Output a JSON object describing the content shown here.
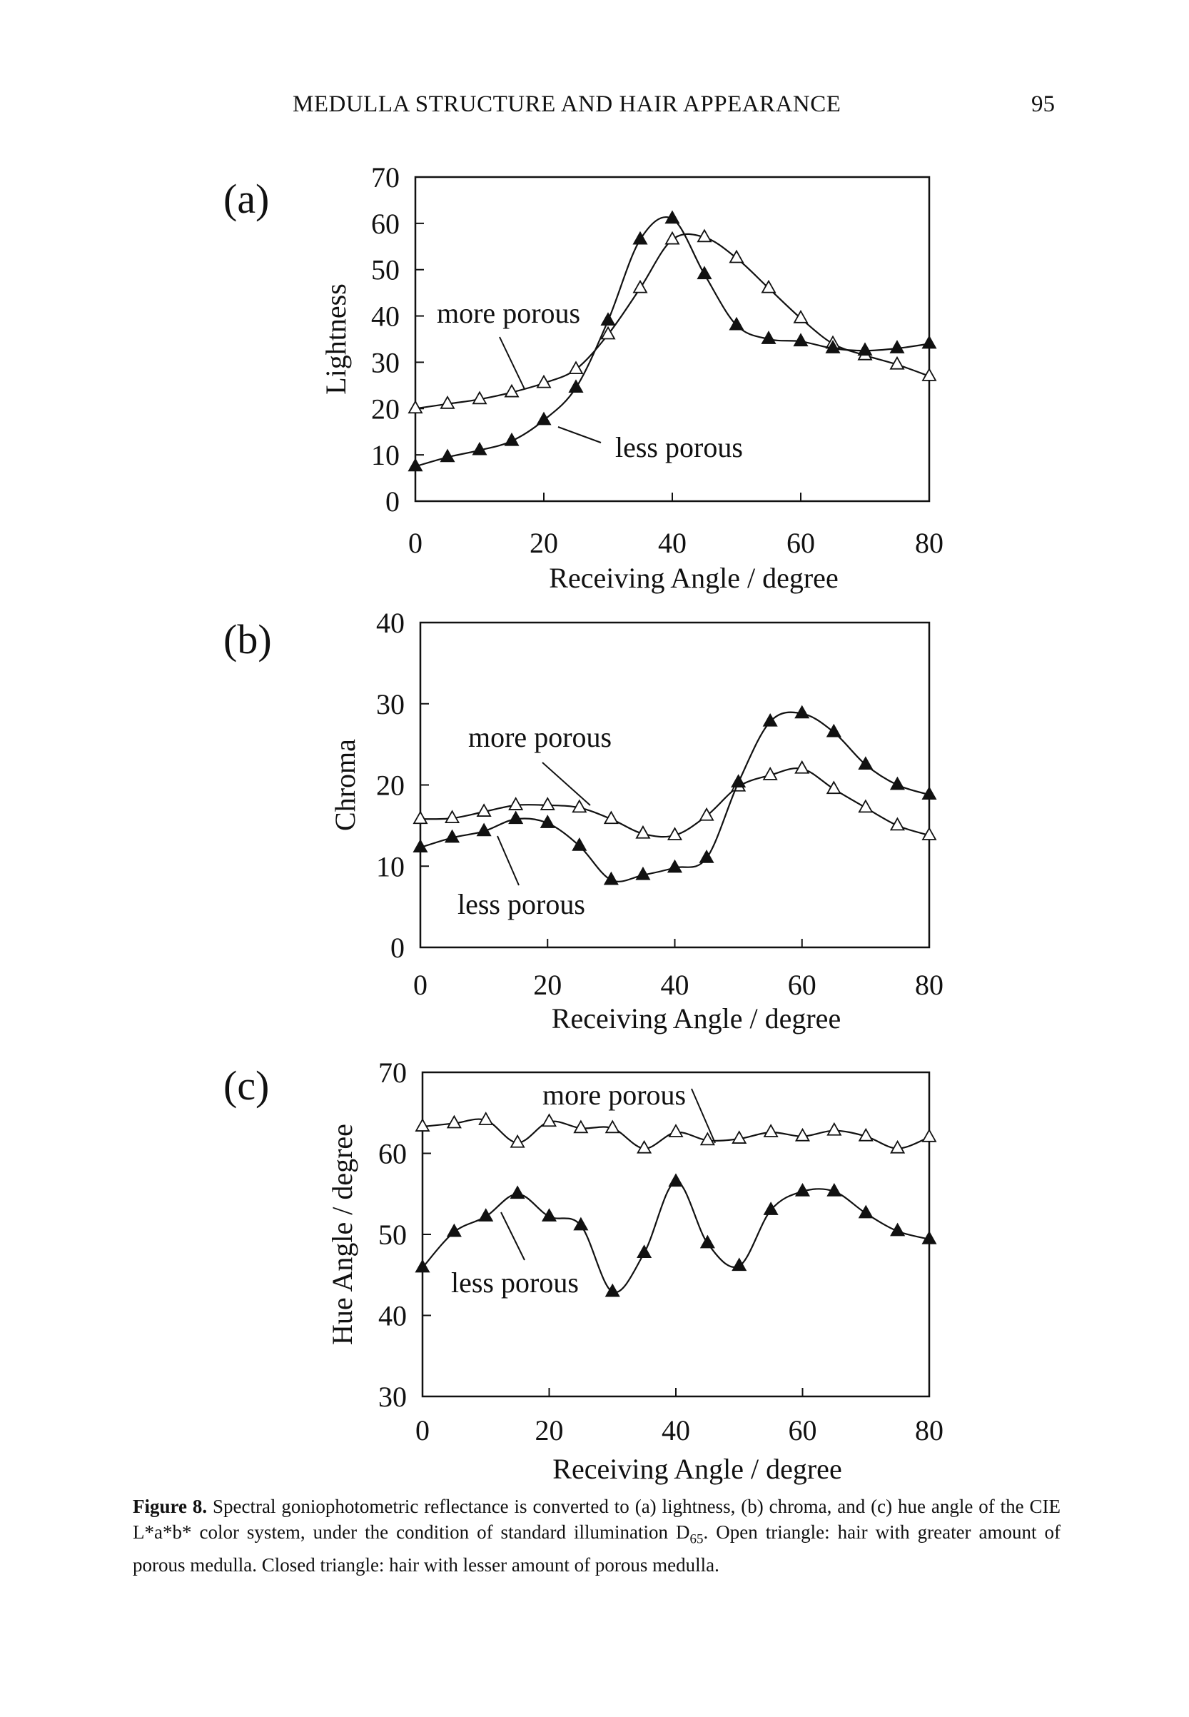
{
  "header": {
    "running_title": "MEDULLA STRUCTURE AND HAIR APPEARANCE",
    "page_number": "95"
  },
  "caption": {
    "label": "Figure 8.",
    "text_1": " Spectral goniophotometric reflectance is converted to (a) lightness, (b) chroma, and (c) hue angle of the CIE L*a*b* color system, under the condition of standard illumination D",
    "subscript": "65",
    "text_2": ". Open triangle: hair with greater amount of porous medulla. Closed triangle: hair with lesser amount of porous medulla."
  },
  "chart_data": [
    {
      "type": "line",
      "panel_label": "(a)",
      "xlabel": "Receiving Angle / degree",
      "ylabel": "Lightness",
      "xlim": [
        0,
        80
      ],
      "ylim": [
        0,
        70
      ],
      "x_ticks": [
        0,
        20,
        40,
        60,
        80
      ],
      "y_ticks": [
        0,
        10,
        20,
        30,
        40,
        50,
        60,
        70
      ],
      "grid": false,
      "series": [
        {
          "name": "more porous",
          "marker": "open-triangle",
          "x": [
            0,
            5,
            10,
            15,
            20,
            25,
            30,
            35,
            40,
            45,
            50,
            55,
            60,
            65,
            70,
            75,
            80
          ],
          "y": [
            20,
            21,
            22,
            23.5,
            25.5,
            28.5,
            36,
            46,
            56.5,
            57,
            52.5,
            46,
            39.5,
            34,
            31.5,
            29.5,
            27
          ]
        },
        {
          "name": "less porous",
          "marker": "filled-triangle",
          "x": [
            0,
            5,
            10,
            15,
            20,
            25,
            30,
            35,
            40,
            45,
            50,
            55,
            60,
            65,
            70,
            75,
            80
          ],
          "y": [
            7.5,
            9.5,
            11,
            13,
            17.5,
            24.5,
            39,
            56.5,
            61,
            49,
            38,
            35,
            34.5,
            33,
            32.5,
            33,
            34
          ]
        }
      ],
      "annotations": [
        "more porous",
        "less porous"
      ]
    },
    {
      "type": "line",
      "panel_label": "(b)",
      "xlabel": "Receiving Angle / degree",
      "ylabel": "Chroma",
      "xlim": [
        0,
        80
      ],
      "ylim": [
        0,
        40
      ],
      "x_ticks": [
        0,
        20,
        40,
        60,
        80
      ],
      "y_ticks": [
        0,
        10,
        20,
        30,
        40
      ],
      "grid": false,
      "series": [
        {
          "name": "more porous",
          "marker": "open-triangle",
          "x": [
            0,
            5,
            10,
            15,
            20,
            25,
            30,
            35,
            40,
            45,
            50,
            55,
            60,
            65,
            70,
            75,
            80
          ],
          "y": [
            15.8,
            15.9,
            16.7,
            17.5,
            17.5,
            17.2,
            15.8,
            14,
            13.8,
            16.2,
            19.8,
            21.2,
            22,
            19.5,
            17.2,
            15,
            13.8
          ]
        },
        {
          "name": "less porous",
          "marker": "filled-triangle",
          "x": [
            0,
            5,
            10,
            15,
            20,
            25,
            30,
            35,
            40,
            45,
            50,
            55,
            60,
            65,
            70,
            75,
            80
          ],
          "y": [
            12.3,
            13.5,
            14.3,
            15.8,
            15.3,
            12.5,
            8.3,
            8.9,
            9.8,
            11,
            20.3,
            27.8,
            28.8,
            26.5,
            22.5,
            20,
            18.8
          ]
        }
      ],
      "annotations": [
        "more porous",
        "less porous"
      ]
    },
    {
      "type": "line",
      "panel_label": "(c)",
      "xlabel": "Receiving Angle / degree",
      "ylabel": "Hue Angle / degree",
      "xlim": [
        0,
        80
      ],
      "ylim": [
        30,
        70
      ],
      "x_ticks": [
        0,
        20,
        40,
        60,
        80
      ],
      "y_ticks": [
        30,
        40,
        50,
        60,
        70
      ],
      "grid": false,
      "series": [
        {
          "name": "more porous",
          "marker": "open-triangle",
          "x": [
            0,
            5,
            10,
            15,
            20,
            25,
            30,
            35,
            40,
            45,
            50,
            55,
            60,
            65,
            70,
            75,
            80
          ],
          "y": [
            63.3,
            63.7,
            64.1,
            61.3,
            63.9,
            63.1,
            63.1,
            60.6,
            62.6,
            61.6,
            61.8,
            62.6,
            62.1,
            62.8,
            62.1,
            60.6,
            62
          ]
        },
        {
          "name": "less porous",
          "marker": "filled-triangle",
          "x": [
            0,
            5,
            10,
            15,
            20,
            25,
            30,
            35,
            40,
            45,
            50,
            55,
            60,
            65,
            70,
            75,
            80
          ],
          "y": [
            45.9,
            50.3,
            52.2,
            55,
            52.2,
            51.1,
            42.9,
            47.7,
            56.5,
            48.9,
            46.1,
            53,
            55.3,
            55.3,
            52.6,
            50.4,
            49.4
          ]
        }
      ],
      "annotations": [
        "more porous",
        "less porous"
      ]
    }
  ]
}
